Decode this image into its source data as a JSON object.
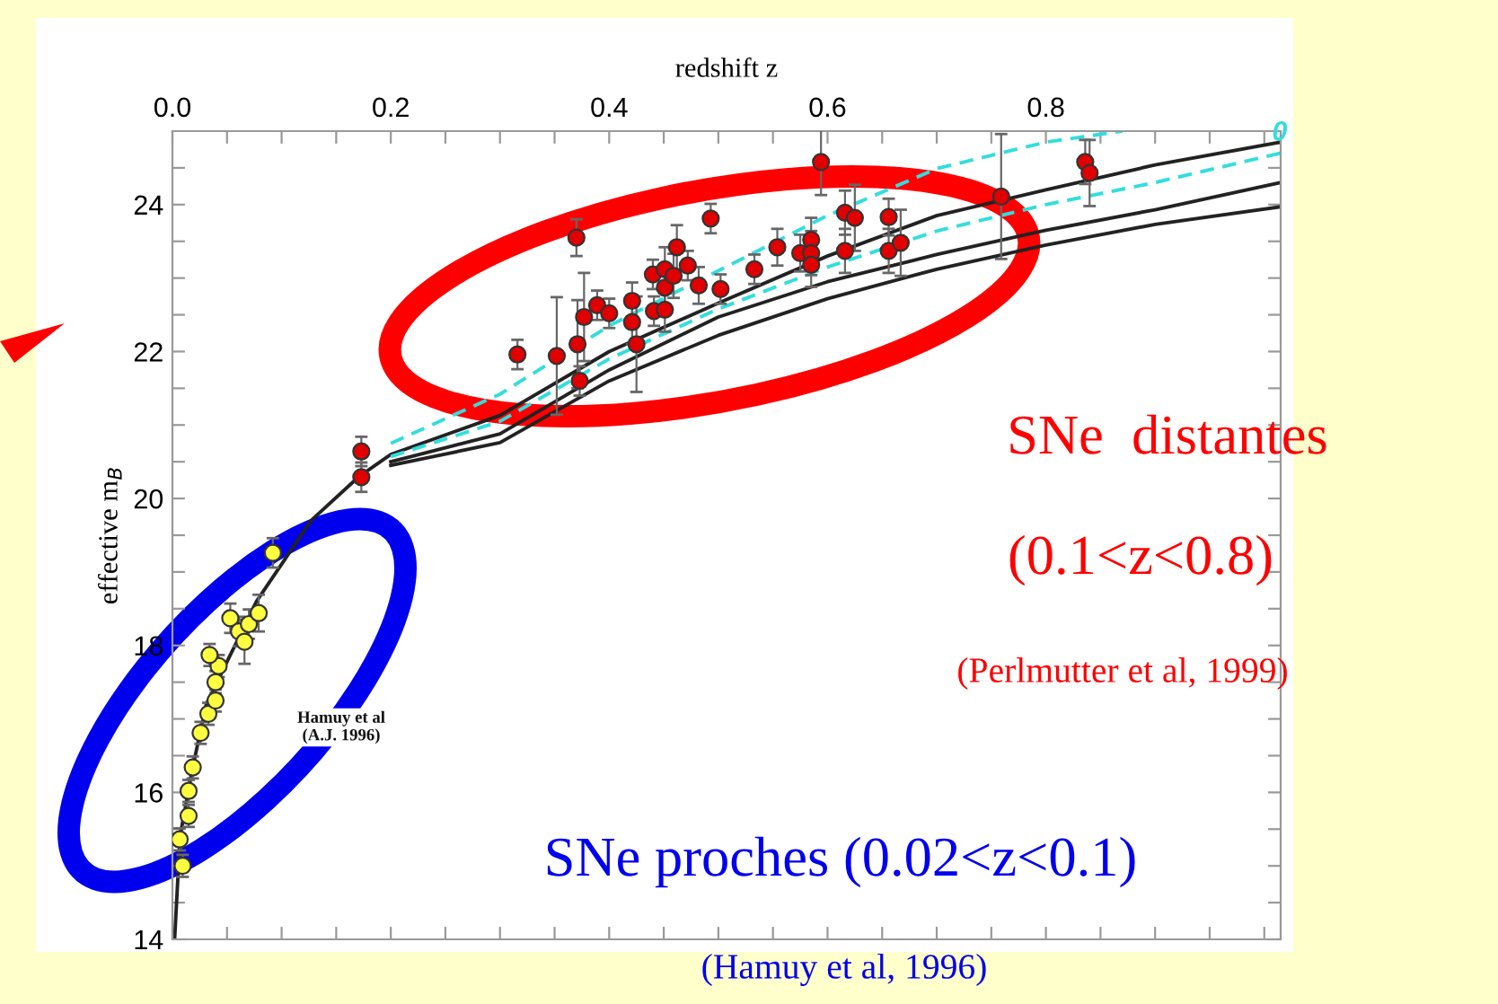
{
  "chart_data": {
    "type": "scatter",
    "xlabel": "redshift z",
    "ylabel": "effective m$_{B}$",
    "xlim": [
      0,
      1.015
    ],
    "ylim": [
      14,
      25
    ],
    "xticks": [
      {
        "value": 0,
        "label": "0.0"
      },
      {
        "value": 0.05,
        "label": null
      },
      {
        "value": 0.1,
        "label": null
      },
      {
        "value": 0.15,
        "label": null
      },
      {
        "value": 0.2,
        "label": "0.2"
      },
      {
        "value": 0.25,
        "label": null
      },
      {
        "value": 0.3,
        "label": null
      },
      {
        "value": 0.35,
        "label": null
      },
      {
        "value": 0.4,
        "label": "0.4"
      },
      {
        "value": 0.45,
        "label": null
      },
      {
        "value": 0.5,
        "label": null
      },
      {
        "value": 0.55,
        "label": null
      },
      {
        "value": 0.6,
        "label": "0.6"
      },
      {
        "value": 0.65,
        "label": null
      },
      {
        "value": 0.7,
        "label": null
      },
      {
        "value": 0.75,
        "label": null
      },
      {
        "value": 0.8,
        "label": "0.8"
      },
      {
        "value": 0.85,
        "label": null
      },
      {
        "value": 0.9,
        "label": null
      },
      {
        "value": 0.95,
        "label": null
      },
      {
        "value": 1.0,
        "label": null
      }
    ],
    "yticks": [
      14,
      {
        "value": 14.5,
        "label": null
      },
      {
        "value": 15,
        "label": null
      },
      {
        "value": 15.5,
        "label": null
      },
      16,
      {
        "value": 16.5,
        "label": null
      },
      {
        "value": 17,
        "label": null
      },
      {
        "value": 17.5,
        "label": null
      },
      18,
      {
        "value": 18.5,
        "label": null
      },
      {
        "value": 19,
        "label": null
      },
      {
        "value": 19.5,
        "label": null
      },
      20,
      {
        "value": 20.5,
        "label": null
      },
      {
        "value": 21,
        "label": null
      },
      {
        "value": 21.5,
        "label": null
      },
      22,
      {
        "value": 22.5,
        "label": null
      },
      {
        "value": 23,
        "label": null
      },
      {
        "value": 23.5,
        "label": null
      },
      24,
      {
        "value": 24.5,
        "label": null
      }
    ],
    "grid": false,
    "series": [
      {
        "type": "line",
        "name": "0",
        "marker": "none",
        "color": "#33dddd",
        "line_style": "dashed",
        "x": [
          0.2,
          0.3,
          0.4,
          0.5,
          0.6,
          0.7,
          0.8,
          0.87
        ],
        "values": [
          20.75,
          21.42,
          22.35,
          23.1,
          23.85,
          24.49,
          24.85,
          25.0
        ]
      },
      {
        "type": "line",
        "marker": "none",
        "color": "#222222",
        "line_style": "solid",
        "x": [
          0.002,
          0.007,
          0.018,
          0.031,
          0.077,
          0.127,
          0.171,
          0.2,
          0.3,
          0.4,
          0.5,
          0.6,
          0.7,
          0.8,
          0.9,
          1.015
        ],
        "values": [
          14.0,
          15.4,
          16.3,
          17.2,
          18.6,
          19.7,
          20.3,
          20.6,
          21.13,
          22.0,
          22.66,
          23.3,
          23.85,
          24.2,
          24.54,
          24.85
        ]
      },
      {
        "type": "line",
        "marker": "none",
        "color": "#33dddd",
        "line_style": "dashed",
        "x": [
          0.2,
          0.3,
          0.4,
          0.5,
          0.6,
          0.7,
          0.8,
          0.9,
          1.015
        ],
        "values": [
          20.57,
          21.05,
          21.9,
          22.58,
          23.15,
          23.64,
          24.0,
          24.3,
          24.7
        ]
      },
      {
        "type": "line",
        "marker": "none",
        "color": "#222222",
        "line_style": "solid",
        "x": [
          0.2,
          0.3,
          0.4,
          0.5,
          0.6,
          0.7,
          0.8,
          0.9,
          1.015
        ],
        "values": [
          20.5,
          20.88,
          21.75,
          22.47,
          22.95,
          23.32,
          23.65,
          23.93,
          24.3
        ]
      },
      {
        "type": "line",
        "marker": "none",
        "color": "#222222",
        "line_style": "solid",
        "x": [
          0.2,
          0.3,
          0.4,
          0.5,
          0.6,
          0.7,
          0.8,
          0.9,
          1.015
        ],
        "values": [
          20.45,
          20.76,
          21.6,
          22.22,
          22.72,
          23.12,
          23.45,
          23.73,
          23.97
        ]
      },
      {
        "marker": "circle",
        "color": "#ffff40",
        "x": [
          0.0066,
          0.0094,
          0.0148,
          0.0148,
          0.0186,
          0.0258,
          0.0329,
          0.0395,
          0.0395,
          0.0423,
          0.034,
          0.053,
          0.061,
          0.066,
          0.07,
          0.079,
          0.092
        ],
        "values": [
          15.36,
          15.0,
          15.68,
          16.02,
          16.34,
          16.81,
          17.07,
          17.25,
          17.5,
          17.72,
          17.87,
          18.37,
          18.19,
          18.05,
          18.29,
          18.44,
          19.26
        ],
        "errors": [
          0.15,
          0.15,
          0.15,
          0.15,
          0.15,
          0.15,
          0.15,
          0.15,
          0.15,
          0.15,
          0.15,
          0.2,
          0.2,
          0.3,
          0.2,
          0.25,
          0.2
        ]
      },
      {
        "marker": "circle",
        "color": "#e00000",
        "x": [
          0.173,
          0.173,
          0.316,
          0.352,
          0.37,
          0.371,
          0.373,
          0.377,
          0.389,
          0.4,
          0.421,
          0.421,
          0.425,
          0.44,
          0.441,
          0.451,
          0.451,
          0.451,
          0.459,
          0.462,
          0.472,
          0.482,
          0.493,
          0.502,
          0.533,
          0.554,
          0.575,
          0.585,
          0.585,
          0.585,
          0.594,
          0.616,
          0.616,
          0.625,
          0.656,
          0.656,
          0.667,
          0.759,
          0.836,
          0.84
        ],
        "values": [
          20.64,
          20.29,
          21.96,
          21.94,
          23.55,
          22.1,
          21.6,
          22.47,
          22.63,
          22.52,
          22.69,
          22.4,
          22.1,
          23.05,
          22.55,
          23.12,
          22.87,
          22.57,
          23.03,
          23.42,
          23.17,
          22.9,
          23.81,
          22.85,
          23.12,
          23.42,
          23.34,
          23.52,
          23.34,
          23.18,
          24.58,
          23.89,
          23.37,
          23.82,
          23.83,
          23.37,
          23.48,
          24.11,
          24.58,
          24.43
        ],
        "errors": [
          0.2,
          0.2,
          0.2,
          0.8,
          0.25,
          0.6,
          0.2,
          0.6,
          0.2,
          0.2,
          0.25,
          0.3,
          0.65,
          0.2,
          0.2,
          0.3,
          0.3,
          0.3,
          0.3,
          0.3,
          0.2,
          0.25,
          0.2,
          0.2,
          0.2,
          0.25,
          0.25,
          0.3,
          0.3,
          0.3,
          0.45,
          0.3,
          0.3,
          0.45,
          0.25,
          0.3,
          0.45,
          0.85,
          0.3,
          0.45
        ]
      }
    ],
    "annotations": [
      "SNe  distantes",
      "(0.1<z<0.8)",
      "(Perlmutter et al, 1999)",
      "SNe proches (0.02<z<0.1)",
      "(Hamuy et al, 1996)",
      "Hamuy et al\n(A.J. 1996)"
    ]
  }
}
